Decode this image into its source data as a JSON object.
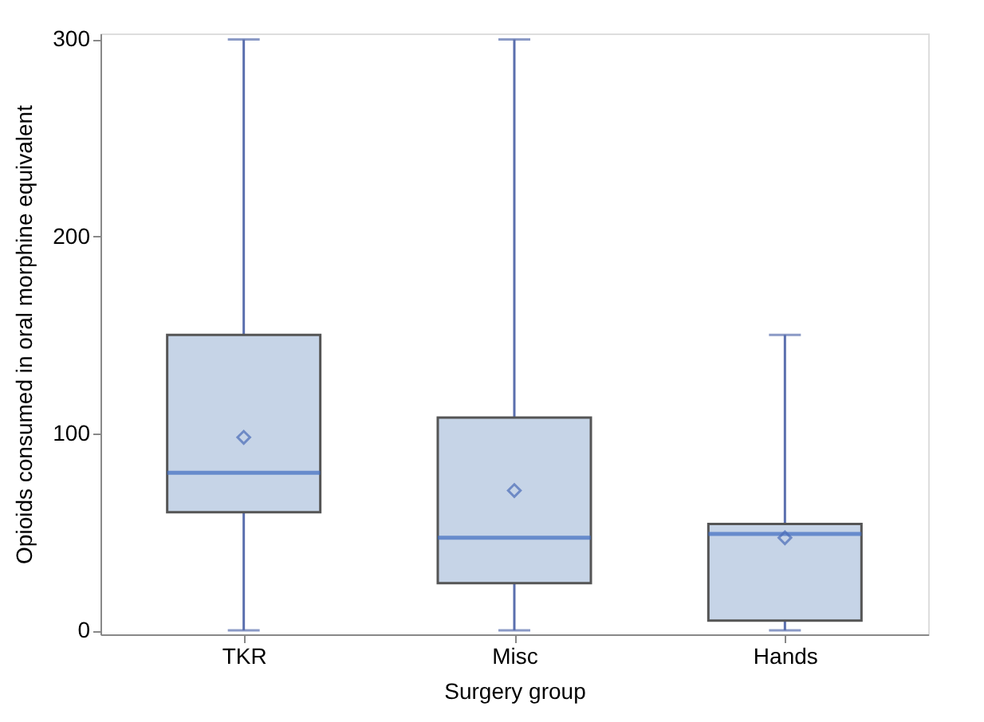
{
  "chart_data": {
    "type": "box",
    "xlabel": "Surgery group",
    "ylabel": "Opioids consumed in oral morphine equivalent",
    "categories": [
      "TKR",
      "Misc",
      "Hands"
    ],
    "boxes": [
      {
        "low": 0,
        "q1": 60,
        "median": 80,
        "q3": 150,
        "high": 300,
        "mean": 98
      },
      {
        "low": 0,
        "q1": 24,
        "median": 47,
        "q3": 108,
        "high": 300,
        "mean": 71
      },
      {
        "low": 0,
        "q1": 5,
        "median": 49,
        "q3": 54,
        "high": 150,
        "mean": 47
      }
    ],
    "color": "#c6d4e7",
    "ylim": [
      -2,
      303
    ],
    "yticks": [
      0,
      100,
      200,
      300
    ],
    "grid": false,
    "marker": "diamond"
  }
}
